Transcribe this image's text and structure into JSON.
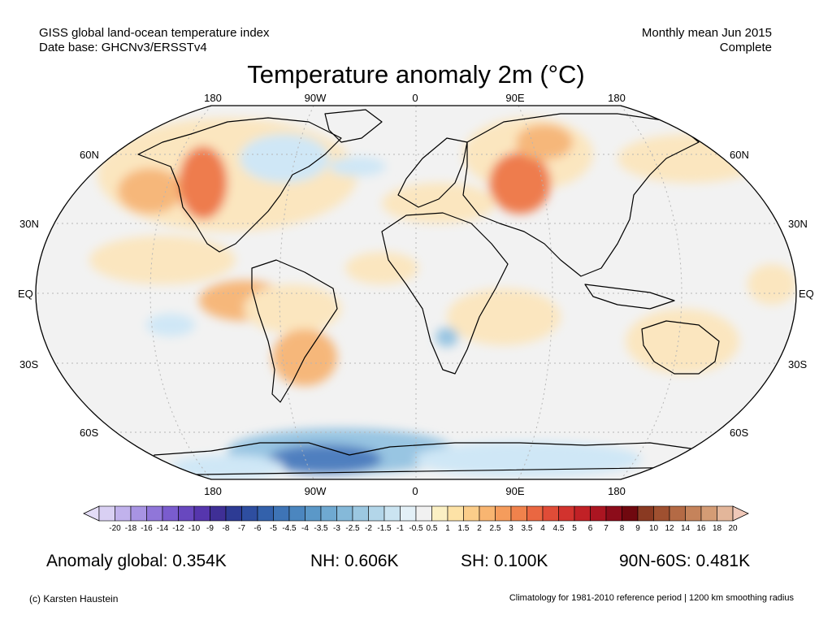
{
  "header": {
    "left_line1": "GISS global land-ocean temperature index",
    "left_line2": "Date base: GHCNv3/ERSSTv4",
    "right_line1": "Monthly mean Jun 2015",
    "right_line2": "Complete",
    "title": "Temperature anomaly 2m (°C)"
  },
  "map": {
    "projection": "Robinson",
    "lon_labels_top": [
      "180",
      "90W",
      "0",
      "90E",
      "180"
    ],
    "lon_labels_bottom": [
      "180",
      "90W",
      "0",
      "90E",
      "180"
    ],
    "lat_labels_left": [
      "60N",
      "30N",
      "EQ",
      "30S",
      "60S"
    ],
    "lat_labels_right": [
      "60N",
      "30N",
      "EQ",
      "30S",
      "60S"
    ],
    "colors": {
      "ocean_neutral": "#f2f2f2",
      "land": "#ffffff",
      "warm_light": "#fbe6bf",
      "warm_mid": "#f6b77a",
      "warm_strong": "#ee7c4d",
      "cool_light": "#cfe7f6",
      "cool_mid": "#98c5e2",
      "cool_strong": "#4f7fbf",
      "coast": "#000000"
    }
  },
  "colorbar": {
    "labels": [
      "-20",
      "-18",
      "-16",
      "-14",
      "-12",
      "-10",
      "-9",
      "-8",
      "-7",
      "-6",
      "-5",
      "-4.5",
      "-4",
      "-3.5",
      "-3",
      "-2.5",
      "-2",
      "-1.5",
      "-1",
      "-0.5",
      "0.5",
      "1",
      "1.5",
      "2",
      "2.5",
      "3",
      "3.5",
      "4",
      "4.5",
      "5",
      "6",
      "7",
      "8",
      "9",
      "10",
      "12",
      "14",
      "16",
      "18",
      "20"
    ],
    "colors": [
      "#d9d0f3",
      "#c1b2ec",
      "#a894e3",
      "#9076d9",
      "#7a5cce",
      "#6848bf",
      "#5636ad",
      "#3f2f96",
      "#2d3b94",
      "#2e4ea0",
      "#3361ab",
      "#3e74b6",
      "#4b86bf",
      "#5b98c8",
      "#6fa9d1",
      "#85b9d9",
      "#9cc8e1",
      "#b3d6e9",
      "#cbe4f1",
      "#e3f0f7",
      "#f1f1f1",
      "#fbf0c4",
      "#fde2a6",
      "#fbcd8a",
      "#f8b571",
      "#f59c5c",
      "#f0824c",
      "#ea6741",
      "#e04c37",
      "#d2332e",
      "#c12126",
      "#ab1521",
      "#8c0c1a",
      "#70080f",
      "#8a3a22",
      "#9f5030",
      "#b46a45",
      "#c5835b",
      "#d49c75",
      "#e3b69a"
    ],
    "left_arrow_color": "#e3dcf6",
    "right_arrow_color": "#f0c8b8"
  },
  "stats": {
    "global": "Anomaly global: 0.354K",
    "nh": "NH: 0.606K",
    "sh": "SH: 0.100K",
    "band": "90N-60S: 0.481K"
  },
  "footer": {
    "credit": "(c) Karsten Haustein",
    "note": "Climatology for 1981-2010 reference period | 1200 km smoothing radius"
  }
}
